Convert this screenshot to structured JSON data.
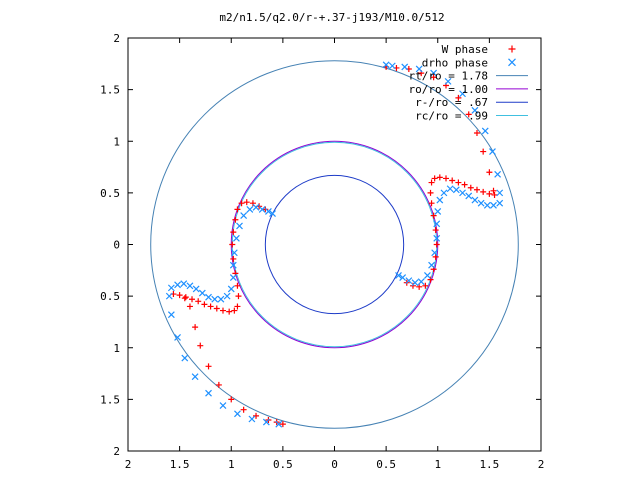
{
  "chart_data": {
    "type": "scatter",
    "title": "m2/n1.5/q2.0/r-+.37-j193/M10.0/512",
    "xlim": [
      -2,
      2
    ],
    "ylim": [
      -2,
      2
    ],
    "x_ticks": [
      -2,
      -1.5,
      -1,
      -0.5,
      0,
      0.5,
      1,
      1.5,
      2
    ],
    "y_ticks": [
      -2,
      -1.5,
      -1,
      -0.5,
      0,
      0.5,
      1,
      1.5,
      2
    ],
    "x_tick_labels": [
      "2",
      "1.5",
      "1",
      "0.5",
      "0",
      "0.5",
      "1",
      "1.5",
      "2"
    ],
    "y_tick_labels": [
      "2",
      "1.5",
      "1",
      "0.5",
      "0",
      "0.5",
      "1",
      "1.5",
      "2"
    ],
    "grid": false,
    "legend_position": "top-right",
    "series": [
      {
        "name": "W phase",
        "marker": "plus",
        "color": "#ff0000",
        "points": [
          [
            -1.56,
            -0.48
          ],
          [
            -1.5,
            -0.49
          ],
          [
            -1.44,
            -0.51
          ],
          [
            -1.38,
            -0.53
          ],
          [
            -1.32,
            -0.55
          ],
          [
            -1.26,
            -0.58
          ],
          [
            -1.2,
            -0.6
          ],
          [
            -1.14,
            -0.62
          ],
          [
            -1.08,
            -0.64
          ],
          [
            -1.02,
            -0.65
          ],
          [
            -0.97,
            -0.64
          ],
          [
            -0.94,
            -0.6
          ],
          [
            -0.93,
            -0.5
          ],
          [
            -0.94,
            -0.4
          ],
          [
            -0.96,
            -0.28
          ],
          [
            -0.98,
            -0.14
          ],
          [
            -0.99,
            0.0
          ],
          [
            -0.98,
            0.12
          ],
          [
            -0.96,
            0.24
          ],
          [
            -0.94,
            0.34
          ],
          [
            -0.9,
            0.4
          ],
          [
            -0.85,
            0.41
          ],
          [
            -0.79,
            0.4
          ],
          [
            -0.73,
            0.37
          ],
          [
            -0.67,
            0.34
          ],
          [
            -1.45,
            -0.52
          ],
          [
            -1.4,
            -0.6
          ],
          [
            -1.35,
            -0.8
          ],
          [
            -1.3,
            -0.98
          ],
          [
            -1.22,
            -1.18
          ],
          [
            -1.12,
            -1.36
          ],
          [
            -1.0,
            -1.5
          ],
          [
            -0.88,
            -1.6
          ],
          [
            -0.76,
            -1.66
          ],
          [
            -0.64,
            -1.7
          ],
          [
            -0.56,
            -1.72
          ],
          [
            -0.5,
            -1.74
          ],
          [
            1.55,
            0.48
          ],
          [
            1.5,
            0.49
          ],
          [
            1.44,
            0.51
          ],
          [
            1.38,
            0.53
          ],
          [
            1.32,
            0.55
          ],
          [
            1.26,
            0.58
          ],
          [
            1.2,
            0.6
          ],
          [
            1.14,
            0.62
          ],
          [
            1.08,
            0.64
          ],
          [
            1.02,
            0.65
          ],
          [
            0.97,
            0.64
          ],
          [
            0.94,
            0.6
          ],
          [
            0.93,
            0.5
          ],
          [
            0.94,
            0.4
          ],
          [
            0.96,
            0.28
          ],
          [
            0.98,
            0.14
          ],
          [
            0.99,
            0.0
          ],
          [
            0.98,
            -0.12
          ],
          [
            0.96,
            -0.24
          ],
          [
            0.93,
            -0.34
          ],
          [
            0.88,
            -0.4
          ],
          [
            0.82,
            -0.41
          ],
          [
            0.76,
            -0.4
          ],
          [
            0.7,
            -0.37
          ],
          [
            1.54,
            0.52
          ],
          [
            1.5,
            0.7
          ],
          [
            1.44,
            0.9
          ],
          [
            1.38,
            1.08
          ],
          [
            1.3,
            1.26
          ],
          [
            1.2,
            1.42
          ],
          [
            1.08,
            1.54
          ],
          [
            0.96,
            1.62
          ],
          [
            0.84,
            1.66
          ],
          [
            0.72,
            1.7
          ],
          [
            0.6,
            1.71
          ],
          [
            0.5,
            1.72
          ]
        ]
      },
      {
        "name": "drho phase",
        "marker": "cross",
        "color": "#1e90ff",
        "points": [
          [
            -1.58,
            -0.42
          ],
          [
            -1.52,
            -0.39
          ],
          [
            -1.46,
            -0.38
          ],
          [
            -1.4,
            -0.4
          ],
          [
            -1.34,
            -0.43
          ],
          [
            -1.28,
            -0.47
          ],
          [
            -1.22,
            -0.51
          ],
          [
            -1.16,
            -0.53
          ],
          [
            -1.1,
            -0.53
          ],
          [
            -1.04,
            -0.5
          ],
          [
            -1.0,
            -0.43
          ],
          [
            -0.98,
            -0.32
          ],
          [
            -0.98,
            -0.2
          ],
          [
            -0.97,
            -0.08
          ],
          [
            -0.95,
            0.06
          ],
          [
            -0.92,
            0.18
          ],
          [
            -0.88,
            0.28
          ],
          [
            -0.82,
            0.34
          ],
          [
            -0.76,
            0.36
          ],
          [
            -0.7,
            0.34
          ],
          [
            -0.64,
            0.32
          ],
          [
            -0.6,
            0.3
          ],
          [
            -1.6,
            -0.5
          ],
          [
            -1.58,
            -0.68
          ],
          [
            -1.52,
            -0.9
          ],
          [
            -1.45,
            -1.1
          ],
          [
            -1.35,
            -1.28
          ],
          [
            -1.22,
            -1.44
          ],
          [
            -1.08,
            -1.56
          ],
          [
            -0.94,
            -1.64
          ],
          [
            -0.8,
            -1.69
          ],
          [
            -0.66,
            -1.72
          ],
          [
            -0.54,
            -1.74
          ],
          [
            1.6,
            0.4
          ],
          [
            1.54,
            0.38
          ],
          [
            1.48,
            0.38
          ],
          [
            1.42,
            0.4
          ],
          [
            1.36,
            0.43
          ],
          [
            1.3,
            0.47
          ],
          [
            1.24,
            0.5
          ],
          [
            1.18,
            0.53
          ],
          [
            1.12,
            0.54
          ],
          [
            1.06,
            0.5
          ],
          [
            1.02,
            0.43
          ],
          [
            1.0,
            0.32
          ],
          [
            0.99,
            0.2
          ],
          [
            0.99,
            0.06
          ],
          [
            0.97,
            -0.08
          ],
          [
            0.94,
            -0.2
          ],
          [
            0.9,
            -0.3
          ],
          [
            0.84,
            -0.36
          ],
          [
            0.78,
            -0.37
          ],
          [
            0.72,
            -0.35
          ],
          [
            0.66,
            -0.32
          ],
          [
            0.62,
            -0.3
          ],
          [
            1.6,
            0.5
          ],
          [
            1.58,
            0.68
          ],
          [
            1.53,
            0.9
          ],
          [
            1.46,
            1.1
          ],
          [
            1.36,
            1.3
          ],
          [
            1.24,
            1.46
          ],
          [
            1.1,
            1.58
          ],
          [
            0.96,
            1.66
          ],
          [
            0.82,
            1.7
          ],
          [
            0.68,
            1.72
          ],
          [
            0.56,
            1.73
          ],
          [
            0.5,
            1.74
          ]
        ]
      },
      {
        "name": "rt/ro = 1.78",
        "type": "circle",
        "radius": 1.78,
        "color": "#4682b4"
      },
      {
        "name": "ro/ro = 1.00",
        "type": "circle",
        "radius": 1.0,
        "color": "#9400d3"
      },
      {
        "name": "r-/ro = .67",
        "type": "circle",
        "radius": 0.67,
        "color": "#1e3cc8"
      },
      {
        "name": "rc/ro = .99",
        "type": "circle",
        "radius": 0.99,
        "color": "#40c0e0"
      }
    ]
  }
}
